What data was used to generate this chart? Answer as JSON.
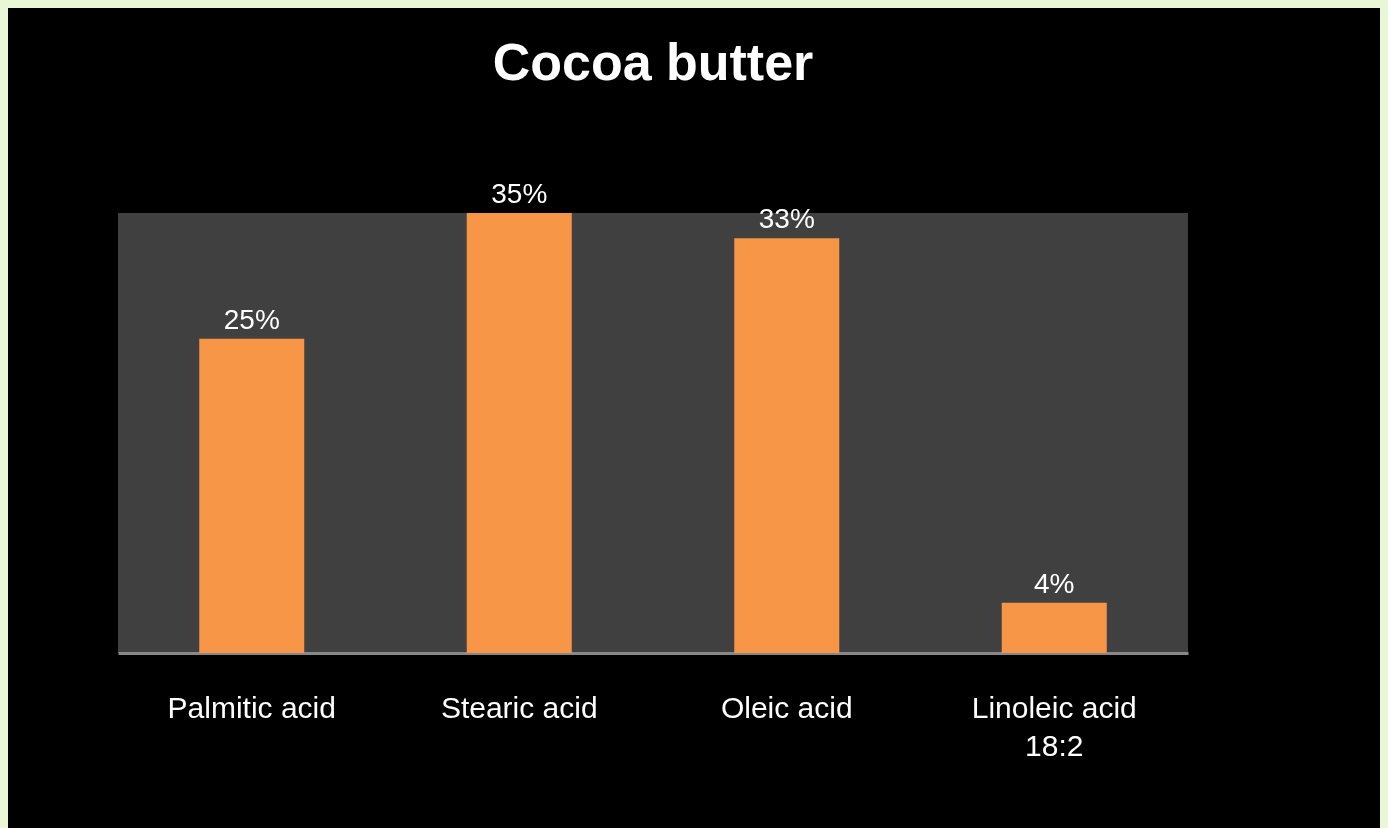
{
  "chart_data": {
    "type": "bar",
    "title": "Cocoa butter",
    "categories": [
      "Palmitic acid",
      "Stearic acid",
      "Oleic acid",
      "Linoleic acid 18:2"
    ],
    "values": [
      25,
      35,
      33,
      4
    ],
    "color": "#f79646",
    "value_labels": [
      "25%",
      "35%",
      "33%",
      "4%"
    ]
  }
}
